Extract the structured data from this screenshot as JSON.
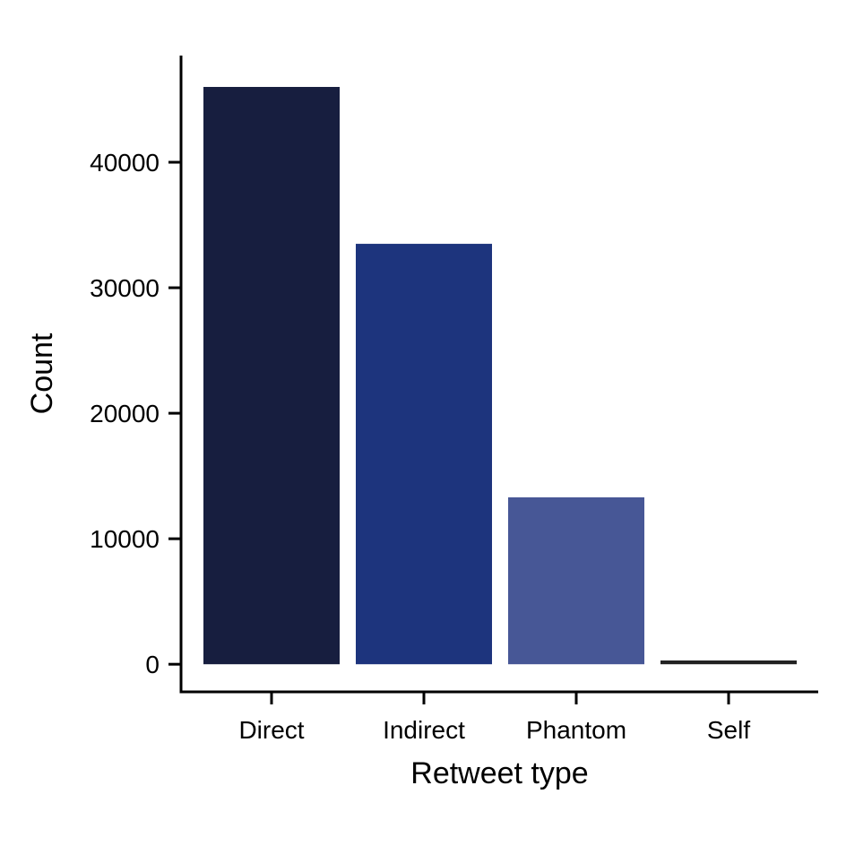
{
  "chart_data": {
    "type": "bar",
    "title": "",
    "xlabel": "Retweet type",
    "ylabel": "Count",
    "categories": [
      "Direct",
      "Indirect",
      "Phantom",
      "Self"
    ],
    "values": [
      46000,
      33500,
      13300,
      300
    ],
    "colors": [
      "#171e3f",
      "#1d347d",
      "#475796",
      "#222222"
    ],
    "ylim": [
      -2200,
      48500
    ],
    "yticks": [
      0,
      10000,
      20000,
      30000,
      40000
    ],
    "ytick_labels": [
      "0",
      "10000",
      "20000",
      "30000",
      "40000"
    ],
    "grid": false,
    "legend": "none"
  }
}
